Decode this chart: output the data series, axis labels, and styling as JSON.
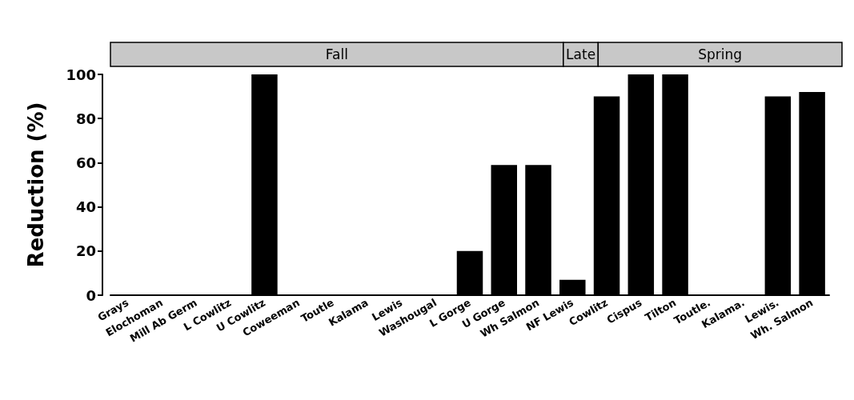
{
  "chart_data": {
    "type": "bar",
    "ylabel": "Reduction (%)",
    "categories": [
      "Grays",
      "Elochoman",
      "Mill Ab Germ",
      "L Cowlitz",
      "U Cowlitz",
      "Coweeman",
      "Toutle",
      "Kalama",
      "Lewis",
      "Washougal",
      "L Gorge",
      "U Gorge",
      "Wh Salmon",
      "NF Lewis",
      "Cowlitz",
      "Cispus",
      "Tilton",
      "Toutle.",
      "Kalama.",
      "Lewis.",
      "Wh. Salmon"
    ],
    "values": [
      0,
      0,
      0,
      0,
      100,
      0,
      0,
      0,
      0,
      0,
      20,
      59,
      59,
      7,
      90,
      100,
      100,
      0,
      0,
      90,
      92
    ],
    "color": "#000000",
    "ylim": [
      0,
      100
    ],
    "yticks": [
      0,
      20,
      40,
      60,
      80,
      100
    ],
    "grid": false,
    "annotations": [
      "Fall",
      "Late",
      "Spring"
    ]
  }
}
